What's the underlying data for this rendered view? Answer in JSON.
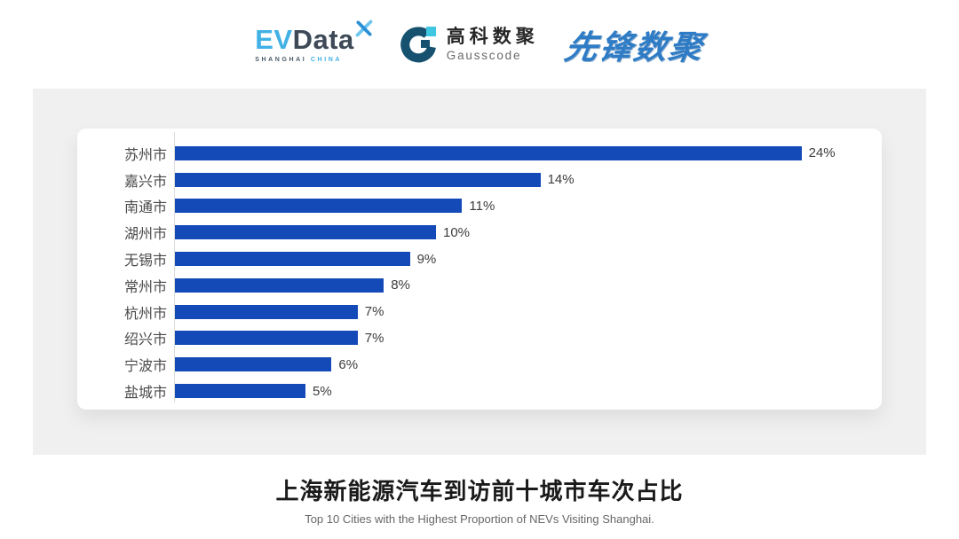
{
  "header": {
    "evdata_logo": {
      "ev": "EV",
      "data": "Data",
      "tagline_shanghai": "SHANGHAI",
      "tagline_china": "CHINA"
    },
    "gausscode_logo": {
      "name_cn": "高科数聚",
      "name_en": "Gausscode"
    },
    "pioneer_logo": {
      "name_cn": "先锋数聚"
    }
  },
  "chart_data": {
    "type": "bar",
    "orientation": "horizontal",
    "categories": [
      "苏州市",
      "嘉兴市",
      "南通市",
      "湖州市",
      "无锡市",
      "常州市",
      "杭州市",
      "绍兴市",
      "宁波市",
      "盐城市"
    ],
    "values": [
      24,
      14,
      11,
      10,
      9,
      8,
      7,
      7,
      6,
      5
    ],
    "value_labels": [
      "24%",
      "14%",
      "11%",
      "10%",
      "9%",
      "8%",
      "7%",
      "7%",
      "6%",
      "5%"
    ],
    "value_suffix": "%",
    "xlim": [
      0,
      24
    ],
    "grid": false,
    "legend": false,
    "bar_color": "#1449b8",
    "title": "上海新能源汽车到访前十城市车次占比",
    "subtitle": "Top 10 Cities with the Highest Proportion of  NEVs Visiting Shanghai."
  },
  "footer": {
    "title": "上海新能源汽车到访前十城市车次占比",
    "subtitle": "Top 10 Cities with the Highest Proportion of  NEVs Visiting Shanghai."
  },
  "colors": {
    "panel_bg": "#f0f0f0",
    "card_bg": "#ffffff",
    "bar": "#1449b8",
    "axis_line": "#dcdcdc",
    "category_label": "#4a4a4a",
    "value_label": "#3d3d3d",
    "title": "#1a1a1a",
    "subtitle": "#666666",
    "evdata_blue": "#41b1e6",
    "evdata_dark": "#3d4956",
    "gausscode_dark": "#16516f",
    "gausscode_cyan": "#3fc6e0",
    "pioneer_blue": "#2e7cc5"
  }
}
